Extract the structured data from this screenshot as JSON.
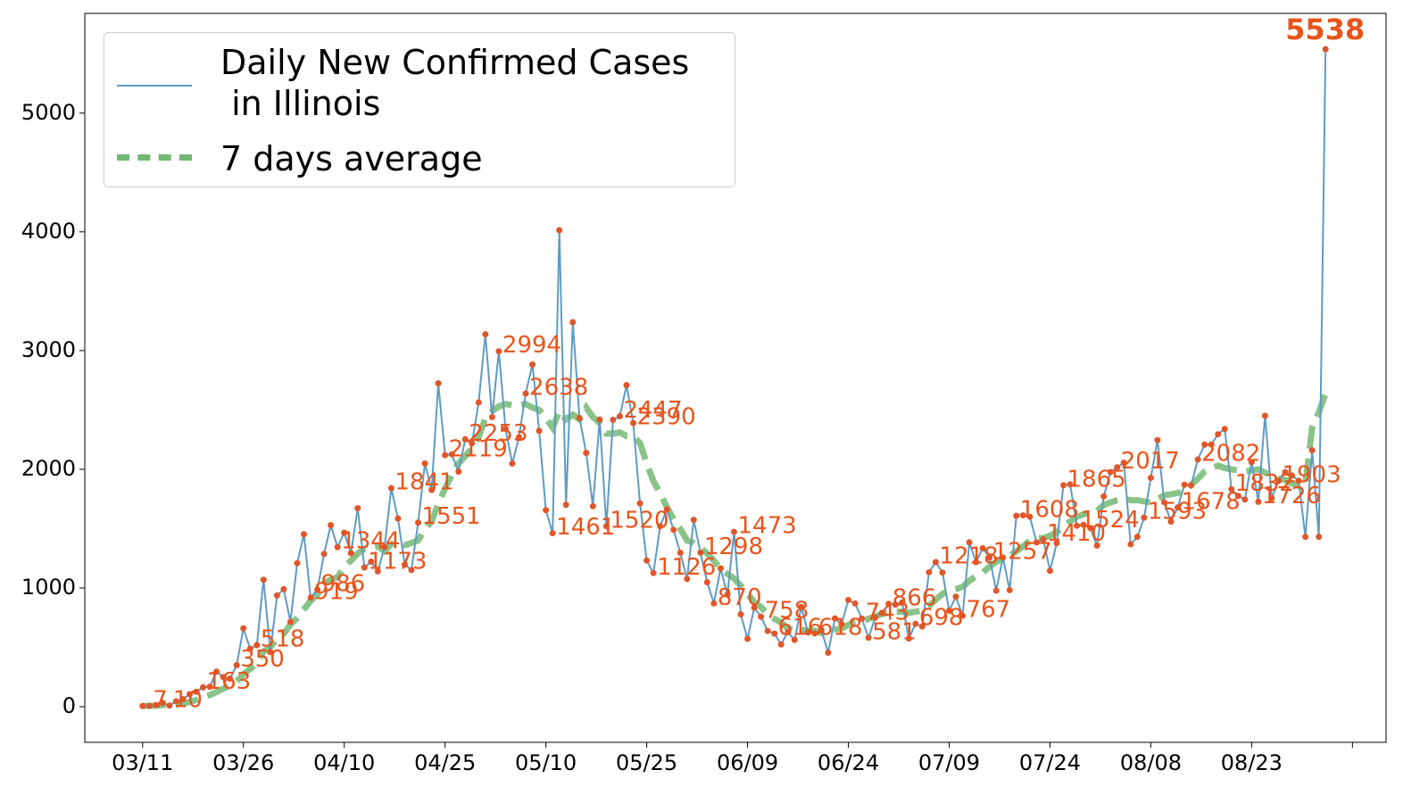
{
  "chart_data": {
    "type": "line",
    "x": [
      "03/11",
      "03/12",
      "03/13",
      "03/14",
      "03/15",
      "03/16",
      "03/17",
      "03/18",
      "03/19",
      "03/20",
      "03/21",
      "03/22",
      "03/23",
      "03/24",
      "03/25",
      "03/26",
      "03/27",
      "03/28",
      "03/29",
      "03/30",
      "03/31",
      "04/01",
      "04/02",
      "04/03",
      "04/04",
      "04/05",
      "04/06",
      "04/07",
      "04/08",
      "04/09",
      "04/10",
      "04/11",
      "04/12",
      "04/13",
      "04/14",
      "04/15",
      "04/16",
      "04/17",
      "04/18",
      "04/19",
      "04/20",
      "04/21",
      "04/22",
      "04/23",
      "04/24",
      "04/25",
      "04/26",
      "04/27",
      "04/28",
      "04/29",
      "04/30",
      "05/01",
      "05/02",
      "05/03",
      "05/04",
      "05/05",
      "05/06",
      "05/07",
      "05/08",
      "05/09",
      "05/10",
      "05/11",
      "05/12",
      "05/13",
      "05/14",
      "05/15",
      "05/16",
      "05/17",
      "05/18",
      "05/19",
      "05/20",
      "05/21",
      "05/22",
      "05/23",
      "05/24",
      "05/25",
      "05/26",
      "05/27",
      "05/28",
      "05/29",
      "05/30",
      "05/31",
      "06/01",
      "06/02",
      "06/03",
      "06/04",
      "06/05",
      "06/06",
      "06/07",
      "06/08",
      "06/09",
      "06/10",
      "06/11",
      "06/12",
      "06/13",
      "06/14",
      "06/15",
      "06/16",
      "06/17",
      "06/18",
      "06/19",
      "06/20",
      "06/21",
      "06/22",
      "06/23",
      "06/24",
      "06/25",
      "06/26",
      "06/27",
      "06/28",
      "06/29",
      "06/30",
      "07/01",
      "07/02",
      "07/03",
      "07/04",
      "07/05",
      "07/06",
      "07/07",
      "07/08",
      "07/09",
      "07/10",
      "07/11",
      "07/12",
      "07/13",
      "07/14",
      "07/15",
      "07/16",
      "07/17",
      "07/18",
      "07/19",
      "07/20",
      "07/21",
      "07/22",
      "07/23",
      "07/24",
      "07/25",
      "07/26",
      "07/27",
      "07/28",
      "07/29",
      "07/30",
      "07/31",
      "08/01",
      "08/02",
      "08/03",
      "08/04",
      "08/05",
      "08/06",
      "08/07",
      "08/08",
      "08/09",
      "08/10",
      "08/11",
      "08/12",
      "08/13",
      "08/14",
      "08/15",
      "08/16",
      "08/17",
      "08/18",
      "08/19",
      "08/20",
      "08/21",
      "08/22",
      "08/23",
      "08/24",
      "08/25",
      "08/26",
      "08/27",
      "08/28",
      "08/29",
      "08/30",
      "08/31",
      "09/01",
      "09/02",
      "09/03"
    ],
    "series": [
      {
        "name": "Daily New Confirmed Cases\n in Illinois",
        "color": "#5f9bc2",
        "marker_color": "#e0562a",
        "values": [
          6,
          7,
          14,
          32,
          10,
          46,
          64,
          105,
          126,
          163,
          168,
          296,
          250,
          236,
          350,
          660,
          488,
          518,
          1070,
          460,
          937,
          990,
          715,
          1209,
          1453,
          919,
          986,
          1287,
          1529,
          1344,
          1465,
          1293,
          1672,
          1173,
          1222,
          1140,
          1346,
          1841,
          1585,
          1197,
          1151,
          1551,
          2049,
          1826,
          2724,
          2119,
          2126,
          1980,
          2253,
          2219,
          2563,
          3137,
          2439,
          2994,
          2341,
          2048,
          2270,
          2638,
          2883,
          2324,
          1656,
          1461,
          4014,
          1701,
          3239,
          2432,
          2138,
          1689,
          2419,
          1520,
          2417,
          2447,
          2709,
          2390,
          1713,
          1231,
          1126,
          1520,
          1662,
          1490,
          1297,
          1076,
          1574,
          1298,
          1048,
          870,
          1165,
          944,
          1473,
          778,
          572,
          835,
          758,
          638,
          616,
          525,
          628,
          563,
          840,
          625,
          618,
          644,
          455,
          744,
          695,
          899,
          870,
          743,
          581,
          750,
          791,
          866,
          860,
          878,
          574,
          698,
          676,
          1133,
          1218,
          1130,
          809,
          927,
          767,
          1384,
          1218,
          1335,
          1257,
          977,
          1257,
          982,
          1608,
          1612,
          1600,
          1384,
          1410,
          1145,
          1378,
          1865,
          1873,
          1524,
          1532,
          1505,
          1357,
          1772,
          1976,
          2017,
          2055,
          1368,
          1431,
          1593,
          1928,
          2246,
          1722,
          1559,
          1678,
          1870,
          1864,
          2082,
          2208,
          2208,
          2295,
          2340,
          1832,
          1775,
          1745,
          2060,
          1726,
          2451,
          1756,
          1903,
          1975,
          1947,
          1903,
          1431,
          2160,
          1431,
          5538
        ],
        "value_labels": [
          null,
          "7",
          null,
          null,
          "10",
          null,
          null,
          null,
          null,
          "163",
          null,
          null,
          null,
          null,
          "350",
          null,
          null,
          "518",
          null,
          null,
          null,
          null,
          null,
          null,
          null,
          "919",
          "986",
          null,
          null,
          "1344",
          null,
          null,
          null,
          "1173",
          null,
          null,
          null,
          "1841",
          null,
          null,
          null,
          "1551",
          null,
          null,
          null,
          "2119",
          null,
          null,
          "2253",
          null,
          null,
          null,
          null,
          "2994",
          null,
          null,
          null,
          "2638",
          null,
          null,
          null,
          "1461",
          null,
          null,
          null,
          null,
          null,
          null,
          null,
          "1520",
          null,
          "2447",
          null,
          "2390",
          null,
          null,
          "1126",
          null,
          null,
          null,
          null,
          null,
          null,
          "1298",
          null,
          "870",
          null,
          null,
          "1473",
          null,
          null,
          null,
          "758",
          null,
          "616",
          null,
          null,
          null,
          null,
          null,
          "618",
          null,
          null,
          null,
          null,
          null,
          null,
          "743",
          "581",
          null,
          null,
          "866",
          null,
          null,
          null,
          "698",
          null,
          null,
          "1218",
          null,
          null,
          null,
          "767",
          null,
          null,
          null,
          "1257",
          null,
          null,
          null,
          "1608",
          null,
          null,
          null,
          "1410",
          null,
          null,
          "1865",
          null,
          "1524",
          null,
          null,
          null,
          null,
          null,
          "2017",
          null,
          null,
          null,
          "1593",
          null,
          null,
          null,
          null,
          "1678",
          null,
          null,
          "2082",
          null,
          null,
          null,
          null,
          "1832",
          null,
          null,
          null,
          "1726",
          null,
          null,
          "1903",
          null,
          null,
          null,
          null,
          null,
          null,
          "5538"
        ]
      },
      {
        "name": "7 days average",
        "color": "#74b874",
        "dashed": true,
        "values": [
          6,
          7,
          9,
          15,
          14,
          19,
          26,
          40,
          57,
          79,
          98,
          124,
          152,
          178,
          212,
          273,
          318,
          365,
          467,
          500,
          575,
          614,
          692,
          747,
          820,
          892,
          945,
          1040,
          1070,
          1090,
          1180,
          1230,
          1290,
          1330,
          1340,
          1350,
          1310,
          1370,
          1380,
          1360,
          1380,
          1400,
          1500,
          1560,
          1710,
          1840,
          1950,
          2050,
          2110,
          2180,
          2270,
          2430,
          2490,
          2530,
          2550,
          2540,
          2540,
          2550,
          2520,
          2500,
          2430,
          2350,
          2490,
          2420,
          2460,
          2420,
          2520,
          2440,
          2390,
          2300,
          2300,
          2310,
          2280,
          2280,
          2220,
          2050,
          1900,
          1800,
          1680,
          1580,
          1500,
          1400,
          1380,
          1340,
          1290,
          1230,
          1160,
          1120,
          1080,
          1020,
          950,
          880,
          840,
          780,
          740,
          710,
          660,
          640,
          650,
          640,
          640,
          620,
          640,
          650,
          660,
          690,
          710,
          720,
          740,
          760,
          780,
          790,
          800,
          800,
          790,
          800,
          810,
          850,
          900,
          950,
          980,
          990,
          1010,
          1060,
          1100,
          1130,
          1180,
          1220,
          1250,
          1270,
          1310,
          1350,
          1400,
          1420,
          1420,
          1440,
          1470,
          1520,
          1560,
          1600,
          1620,
          1640,
          1650,
          1700,
          1720,
          1740,
          1750,
          1740,
          1740,
          1730,
          1720,
          1750,
          1780,
          1790,
          1800,
          1810,
          1870,
          1920,
          1980,
          2010,
          2030,
          2010,
          2000,
          1990,
          1980,
          1990,
          2000,
          1970,
          1950,
          1920,
          1910,
          1880,
          1860,
          1870,
          2350,
          2480,
          2640
        ]
      }
    ],
    "label_color": "#e8541c",
    "xlim": [
      -8.6,
      185
    ],
    "xticks": [
      {
        "value": 0,
        "label": "03/11"
      },
      {
        "value": 15,
        "label": "03/26"
      },
      {
        "value": 30,
        "label": "04/10"
      },
      {
        "value": 45,
        "label": "04/25"
      },
      {
        "value": 60,
        "label": "05/10"
      },
      {
        "value": 75,
        "label": "05/25"
      },
      {
        "value": 90,
        "label": "06/09"
      },
      {
        "value": 105,
        "label": "06/24"
      },
      {
        "value": 120,
        "label": "07/09"
      },
      {
        "value": 135,
        "label": "07/24"
      },
      {
        "value": 150,
        "label": "08/08"
      },
      {
        "value": 165,
        "label": "08/23"
      },
      {
        "value": 180
      }
    ],
    "ylim": [
      -300,
      5840
    ],
    "yticks": [
      0,
      1000,
      2000,
      3000,
      4000,
      5000
    ],
    "legend": "upper left"
  }
}
